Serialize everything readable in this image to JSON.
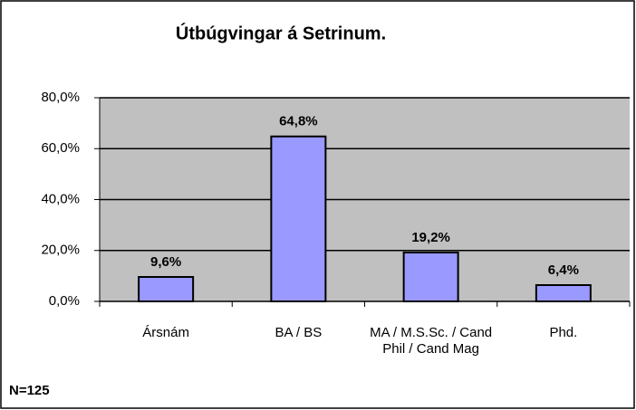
{
  "chart_data": {
    "type": "bar",
    "title": "Útbúgvingar á Setrinum.",
    "categories": [
      "Ársnám",
      "BA / BS",
      "MA / M.S.Sc. / Cand Phil / Cand Mag",
      "Phd."
    ],
    "values": [
      9.6,
      64.8,
      19.2,
      6.4
    ],
    "value_labels": [
      "9,6%",
      "64,8%",
      "19,2%",
      "6,4%"
    ],
    "color": "#9999ff",
    "ylim": [
      0,
      80
    ],
    "yticks": [
      {
        "value": 0,
        "label": "0,0%"
      },
      {
        "value": 20,
        "label": "20,0%"
      },
      {
        "value": 40,
        "label": "40,0%"
      },
      {
        "value": 60,
        "label": "60,0%"
      },
      {
        "value": 80,
        "label": "80,0%"
      }
    ],
    "grid": true,
    "annotation": "N=125"
  }
}
